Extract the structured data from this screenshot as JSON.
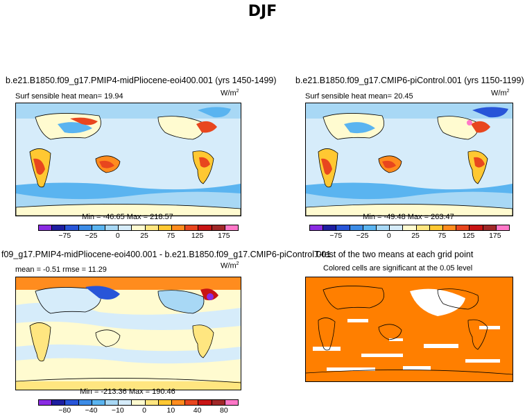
{
  "title": "DJF",
  "units": "W/m",
  "units_exp": "2",
  "panels": [
    {
      "title": "b.e21.B1850.f09_g17.PMIP4-midPliocene-eoi400.001 (yrs 1450-1499)",
      "subtitle": "Surf sensible heat   mean=   19.94",
      "minmax": "Min = -46.65 Max = 218.57"
    },
    {
      "title": "b.e21.B1850.f09_g17.CMIP6-piControl.001 (yrs 1150-1199)",
      "subtitle": "Surf sensible heat   mean=   20.45",
      "minmax": "Min = -49.48 Max = 263.47"
    },
    {
      "title": "f09_g17.PMIP4-midPliocene-eoi400.001 - b.e21.B1850.f09_g17.CMIP6-piControl.001",
      "subtitle": "mean =   -0.51      rmse =   11.29",
      "minmax": "Min = -213.36 Max = 190.46"
    },
    {
      "title": "T-test of the two means at each grid point",
      "subtitle": "Colored cells are significant at the 0.05 level"
    }
  ],
  "colorbar_abs": {
    "colors": [
      "#8a2be2",
      "#1e1ea0",
      "#2855d8",
      "#3c8ce6",
      "#5ab4f0",
      "#a8d8f5",
      "#d6ecfa",
      "#fffbd0",
      "#ffe680",
      "#ffc832",
      "#ff8c1e",
      "#e8461e",
      "#c81414",
      "#a02828",
      "#ff78c8"
    ],
    "labels": [
      "-75",
      "-25",
      "0",
      "25",
      "75",
      "125",
      "175"
    ]
  },
  "colorbar_diff": {
    "colors": [
      "#8a2be2",
      "#1e1ea0",
      "#2855d8",
      "#3c8ce6",
      "#5ab4f0",
      "#a8d8f5",
      "#d6ecfa",
      "#fffbd0",
      "#ffe680",
      "#ffc832",
      "#ff8c1e",
      "#e8461e",
      "#c81414",
      "#a02828",
      "#ff78c8"
    ],
    "labels": [
      "-80",
      "-40",
      "-10",
      "0",
      "10",
      "40",
      "80"
    ]
  }
}
